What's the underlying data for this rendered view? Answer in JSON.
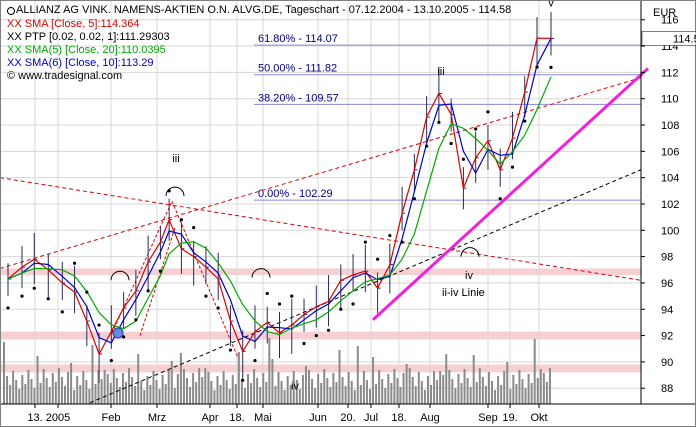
{
  "chart_data": {
    "type": "line",
    "title": "ALLIANZ AG VINK. NAMENS-AKTIEN O.N. ALVG.DE, Tageschart - 07.12.2004 - 13.10.2005 - 114.58",
    "currency_label": "EUR",
    "last_price": "114.58",
    "watermark": "www.tradesignal.com",
    "legend": [
      {
        "text": "XX SMA [Close, 5]:114.364",
        "color": "#dd0000"
      },
      {
        "text": "XX PTP [0.02, 0.02, 1]:111.29303",
        "color": "#000000"
      },
      {
        "text": "XX SMA(5) [Close, 20]:110.0395",
        "color": "#00aa00"
      },
      {
        "text": "XX SMA(6) [Close, 10]:113.29",
        "color": "#0000cc"
      }
    ],
    "y_ticks": [
      88,
      90,
      92,
      94,
      96,
      98,
      100,
      102,
      104,
      106,
      108,
      110,
      112,
      114,
      116
    ],
    "ylim": [
      86.8,
      117.5
    ],
    "x_ticks": [
      "13.",
      "2005",
      "Feb",
      "Mrz",
      "Apr",
      "18.",
      "Mai",
      "Jun",
      "20.",
      "Jul",
      "18.",
      "Aug",
      "Sep",
      "19.",
      "Okt"
    ],
    "fib_levels": [
      {
        "label": "61.80% - 114.07",
        "value": 114.07
      },
      {
        "label": "50.00% - 111.82",
        "value": 111.82
      },
      {
        "label": "38.20% - 109.57",
        "value": 109.57
      },
      {
        "label": "0.00% - 102.29",
        "value": 102.29
      }
    ],
    "support_zones": [
      [
        96.6,
        97.1
      ],
      [
        91.7,
        92.3
      ],
      [
        89.2,
        89.8
      ]
    ],
    "wave_labels": [
      "iii",
      "iv",
      "iii",
      "iv",
      "v"
    ],
    "annotation": "ii-iv Linie",
    "price_series": [
      {
        "date": "2004-12-07",
        "value": 96.3
      },
      {
        "date": "2004-12-15",
        "value": 97.2
      },
      {
        "date": "2004-12-22",
        "value": 97.8
      },
      {
        "date": "2004-12-30",
        "value": 97.0
      },
      {
        "date": "2005-01-07",
        "value": 96.0
      },
      {
        "date": "2005-01-14",
        "value": 95.3
      },
      {
        "date": "2005-01-21",
        "value": 93.1
      },
      {
        "date": "2005-01-28",
        "value": 90.6
      },
      {
        "date": "2005-02-04",
        "value": 92.3
      },
      {
        "date": "2005-02-11",
        "value": 94.1
      },
      {
        "date": "2005-02-18",
        "value": 95.4
      },
      {
        "date": "2005-02-25",
        "value": 97.6
      },
      {
        "date": "2005-03-04",
        "value": 99.1
      },
      {
        "date": "2005-03-09",
        "value": 100.8
      },
      {
        "date": "2005-03-16",
        "value": 98.6
      },
      {
        "date": "2005-03-23",
        "value": 98.0
      },
      {
        "date": "2005-03-30",
        "value": 97.2
      },
      {
        "date": "2005-04-06",
        "value": 96.3
      },
      {
        "date": "2005-04-13",
        "value": 93.1
      },
      {
        "date": "2005-04-20",
        "value": 90.8
      },
      {
        "date": "2005-04-27",
        "value": 92.3
      },
      {
        "date": "2005-05-04",
        "value": 93.0
      },
      {
        "date": "2005-05-11",
        "value": 92.2
      },
      {
        "date": "2005-05-18",
        "value": 92.8
      },
      {
        "date": "2005-05-25",
        "value": 93.6
      },
      {
        "date": "2005-06-01",
        "value": 94.2
      },
      {
        "date": "2005-06-08",
        "value": 94.6
      },
      {
        "date": "2005-06-15",
        "value": 96.2
      },
      {
        "date": "2005-06-22",
        "value": 96.6
      },
      {
        "date": "2005-06-29",
        "value": 96.9
      },
      {
        "date": "2005-07-06",
        "value": 95.6
      },
      {
        "date": "2005-07-13",
        "value": 97.4
      },
      {
        "date": "2005-07-20",
        "value": 101.3
      },
      {
        "date": "2005-07-27",
        "value": 104.6
      },
      {
        "date": "2005-08-03",
        "value": 108.6
      },
      {
        "date": "2005-08-10",
        "value": 110.4
      },
      {
        "date": "2005-08-17",
        "value": 108.8
      },
      {
        "date": "2005-08-24",
        "value": 103.2
      },
      {
        "date": "2005-08-31",
        "value": 105.5
      },
      {
        "date": "2005-09-07",
        "value": 106.8
      },
      {
        "date": "2005-09-14",
        "value": 104.6
      },
      {
        "date": "2005-09-21",
        "value": 107.0
      },
      {
        "date": "2005-09-28",
        "value": 110.5
      },
      {
        "date": "2005-10-05",
        "value": 114.6
      },
      {
        "date": "2005-10-13",
        "value": 114.58
      }
    ],
    "grid": true
  }
}
